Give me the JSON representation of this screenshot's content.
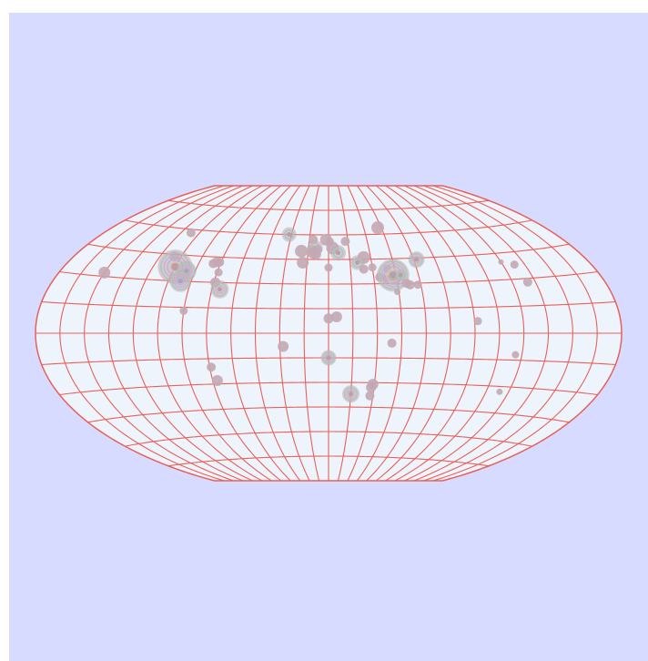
{
  "map": {
    "projection": "winkel-tripel",
    "colors": {
      "page_background": "#d7dbff",
      "land_background": "#eef4fb",
      "graticule": "#e8605a",
      "bubble_fill": "#c3a9b4",
      "bubble_core": "#b8a0ab",
      "ring_colors": [
        "#a8c8b8",
        "#d0b0c8",
        "#b0b8e0",
        "#e0c0a8"
      ]
    },
    "graticule": {
      "lon_step": 15,
      "lat_step": 15
    },
    "markers": [
      {
        "lon": -112,
        "lat": 58,
        "size": 1.0,
        "rings": 0
      },
      {
        "lon": -110,
        "lat": 44,
        "size": 1.1,
        "rings": 0
      },
      {
        "lon": -105,
        "lat": 38,
        "size": 3.8,
        "rings": 4
      },
      {
        "lon": -96,
        "lat": 36,
        "size": 2.2,
        "rings": 3
      },
      {
        "lon": -97,
        "lat": 30,
        "size": 2.4,
        "rings": 3
      },
      {
        "lon": -80,
        "lat": 41,
        "size": 1.0,
        "rings": 0
      },
      {
        "lon": -78,
        "lat": 42,
        "size": 1.1,
        "rings": 0
      },
      {
        "lon": -76,
        "lat": 42,
        "size": 1.0,
        "rings": 0
      },
      {
        "lon": -74,
        "lat": 36,
        "size": 0.9,
        "rings": 0
      },
      {
        "lon": -74,
        "lat": 30,
        "size": 1.1,
        "rings": 0
      },
      {
        "lon": -70,
        "lat": 26,
        "size": 2.0,
        "rings": 2
      },
      {
        "lon": -90,
        "lat": 13,
        "size": 0.9,
        "rings": 0
      },
      {
        "lon": -150,
        "lat": 32,
        "size": 1.3,
        "rings": 0
      },
      {
        "lon": -74,
        "lat": -20,
        "size": 1.0,
        "rings": 0
      },
      {
        "lon": -72,
        "lat": -28,
        "size": 1.2,
        "rings": 0
      },
      {
        "lon": -32,
        "lat": 60,
        "size": 1.6,
        "rings": 1
      },
      {
        "lon": -20,
        "lat": 50,
        "size": 1.4,
        "rings": 0
      },
      {
        "lon": -12,
        "lat": 57,
        "size": 1.0,
        "rings": 0
      },
      {
        "lon": -10,
        "lat": 52,
        "size": 1.7,
        "rings": 1
      },
      {
        "lon": -12,
        "lat": 50,
        "size": 1.4,
        "rings": 1
      },
      {
        "lon": -8,
        "lat": 51,
        "size": 1.0,
        "rings": 0
      },
      {
        "lon": -9,
        "lat": 48,
        "size": 1.1,
        "rings": 0
      },
      {
        "lon": -11,
        "lat": 49,
        "size": 1.3,
        "rings": 0
      },
      {
        "lon": -2,
        "lat": 57,
        "size": 1.3,
        "rings": 0
      },
      {
        "lon": 3,
        "lat": 52,
        "size": 1.4,
        "rings": 0
      },
      {
        "lon": 1,
        "lat": 56,
        "size": 0.9,
        "rings": 0
      },
      {
        "lon": 7,
        "lat": 49,
        "size": 1.7,
        "rings": 1
      },
      {
        "lon": 13,
        "lat": 56,
        "size": 1.0,
        "rings": 0
      },
      {
        "lon": 25,
        "lat": 46,
        "size": 1.4,
        "rings": 0
      },
      {
        "lon": 24,
        "lat": 39,
        "size": 1.0,
        "rings": 0
      },
      {
        "lon": 0,
        "lat": 40,
        "size": 0.9,
        "rings": 0
      },
      {
        "lon": 20,
        "lat": 43,
        "size": 1.6,
        "rings": 1
      },
      {
        "lon": -18,
        "lat": 43,
        "size": 1.3,
        "rings": 0
      },
      {
        "lon": 30,
        "lat": 40,
        "size": 0.9,
        "rings": 0
      },
      {
        "lon": 42,
        "lat": 64,
        "size": 1.4,
        "rings": 0
      },
      {
        "lon": 34,
        "lat": 34,
        "size": 1.0,
        "rings": 0
      },
      {
        "lon": 38,
        "lat": 33,
        "size": 0.9,
        "rings": 0
      },
      {
        "lon": 42,
        "lat": 33,
        "size": 0.9,
        "rings": 0
      },
      {
        "lon": 44,
        "lat": 32,
        "size": 1.0,
        "rings": 0
      },
      {
        "lon": 40,
        "lat": 39,
        "size": 0.9,
        "rings": 0
      },
      {
        "lon": 43,
        "lat": 35,
        "size": 3.6,
        "rings": 5
      },
      {
        "lon": 48,
        "lat": 35,
        "size": 1.2,
        "rings": 1
      },
      {
        "lon": 51,
        "lat": 30,
        "size": 1.0,
        "rings": 0
      },
      {
        "lon": 53,
        "lat": 29,
        "size": 1.0,
        "rings": 0
      },
      {
        "lon": 62,
        "lat": 44,
        "size": 1.8,
        "rings": 2
      },
      {
        "lon": 58,
        "lat": 29,
        "size": 0.9,
        "rings": 0
      },
      {
        "lon": 44,
        "lat": 25,
        "size": 0.7,
        "rings": 0
      },
      {
        "lon": 0,
        "lat": 9,
        "size": 1.1,
        "rings": 0
      },
      {
        "lon": 5,
        "lat": 10,
        "size": 1.2,
        "rings": 0
      },
      {
        "lon": -28,
        "lat": -8,
        "size": 1.2,
        "rings": 0
      },
      {
        "lon": 0,
        "lat": -15,
        "size": 1.7,
        "rings": 2
      },
      {
        "lon": 39,
        "lat": -6,
        "size": 1.0,
        "rings": 0
      },
      {
        "lon": 28,
        "lat": -38,
        "size": 1.0,
        "rings": 0
      },
      {
        "lon": 29,
        "lat": -31,
        "size": 1.2,
        "rings": 0
      },
      {
        "lon": 28,
        "lat": -33,
        "size": 1.1,
        "rings": 0
      },
      {
        "lon": 15,
        "lat": -37,
        "size": 1.9,
        "rings": 2
      },
      {
        "lon": 92,
        "lat": 7,
        "size": 0.9,
        "rings": 0
      },
      {
        "lon": 120,
        "lat": 40,
        "size": 0.6,
        "rings": 0
      },
      {
        "lon": 128,
        "lat": 38,
        "size": 0.9,
        "rings": 0
      },
      {
        "lon": 130,
        "lat": 28,
        "size": 1.0,
        "rings": 0
      },
      {
        "lon": 116,
        "lat": -12,
        "size": 0.8,
        "rings": 0
      },
      {
        "lon": 114,
        "lat": -33,
        "size": 0.7,
        "rings": 0
      }
    ]
  }
}
